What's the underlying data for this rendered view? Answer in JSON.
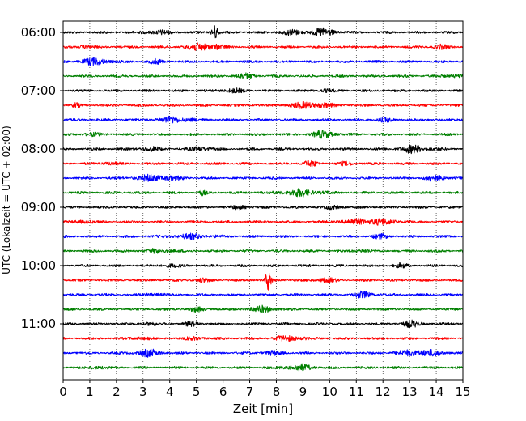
{
  "chart_data": {
    "type": "line",
    "title": "",
    "xlabel": "Zeit  [min]",
    "ylabel": "UTC (Lokalzeit = UTC + 02:00)",
    "xlim": [
      0,
      15
    ],
    "xticks": [
      "0",
      "1",
      "2",
      "3",
      "4",
      "5",
      "6",
      "7",
      "8",
      "9",
      "10",
      "11",
      "12",
      "13",
      "14",
      "15"
    ],
    "yticks": [
      {
        "label": "06:00",
        "row": 0
      },
      {
        "label": "07:00",
        "row": 4
      },
      {
        "label": "08:00",
        "row": 8
      },
      {
        "label": "09:00",
        "row": 12
      },
      {
        "label": "10:00",
        "row": 16
      },
      {
        "label": "11:00",
        "row": 20
      }
    ],
    "grid": "vertical dotted lines at each minute",
    "trace_colors": [
      "#000000",
      "#ff0000",
      "#0000ff",
      "#008000"
    ],
    "traces": [
      {
        "start": "06:00",
        "color": "#000000",
        "bursts": [
          [
            5.7,
            0.12,
            3.5
          ],
          [
            9.7,
            0.6,
            1.0
          ],
          [
            3.5,
            0.5,
            0.6
          ],
          [
            8.5,
            0.4,
            0.6
          ]
        ]
      },
      {
        "start": "06:15",
        "color": "#ff0000",
        "bursts": [
          [
            5.3,
            0.6,
            1.2
          ],
          [
            0.8,
            0.2,
            0.6
          ],
          [
            14.1,
            0.3,
            0.6
          ]
        ]
      },
      {
        "start": "06:30",
        "color": "#0000ff",
        "bursts": [
          [
            1.2,
            0.6,
            0.9
          ],
          [
            3.5,
            0.3,
            0.5
          ]
        ]
      },
      {
        "start": "06:45",
        "color": "#008000",
        "bursts": [
          [
            6.8,
            0.4,
            0.6
          ],
          [
            14.7,
            0.4,
            0.5
          ]
        ]
      },
      {
        "start": "07:00",
        "color": "#000000",
        "bursts": [
          [
            6.3,
            0.4,
            0.6
          ],
          [
            9.8,
            0.3,
            0.5
          ]
        ]
      },
      {
        "start": "07:15",
        "color": "#ff0000",
        "bursts": [
          [
            9.3,
            0.7,
            1.0
          ],
          [
            0.5,
            0.15,
            0.5
          ]
        ]
      },
      {
        "start": "07:30",
        "color": "#0000ff",
        "bursts": [
          [
            4.2,
            0.6,
            0.9
          ],
          [
            12.0,
            0.3,
            0.5
          ]
        ]
      },
      {
        "start": "07:45",
        "color": "#008000",
        "bursts": [
          [
            9.8,
            0.5,
            0.9
          ],
          [
            1.0,
            0.3,
            0.5
          ]
        ]
      },
      {
        "start": "08:00",
        "color": "#000000",
        "bursts": [
          [
            13.2,
            0.6,
            1.0
          ],
          [
            5.2,
            0.3,
            0.8
          ],
          [
            3.2,
            0.4,
            0.6
          ]
        ]
      },
      {
        "start": "08:15",
        "color": "#ff0000",
        "bursts": [
          [
            9.3,
            0.3,
            0.7
          ],
          [
            1.7,
            0.3,
            0.5
          ],
          [
            10.7,
            0.3,
            0.5
          ]
        ]
      },
      {
        "start": "08:30",
        "color": "#0000ff",
        "bursts": [
          [
            3.5,
            0.8,
            0.9
          ],
          [
            14.0,
            0.4,
            0.8
          ]
        ]
      },
      {
        "start": "08:45",
        "color": "#008000",
        "bursts": [
          [
            8.9,
            0.8,
            0.9
          ],
          [
            5.2,
            0.15,
            0.6
          ]
        ]
      },
      {
        "start": "09:00",
        "color": "#000000",
        "bursts": [
          [
            6.7,
            0.3,
            0.6
          ],
          [
            10.2,
            0.3,
            0.5
          ]
        ]
      },
      {
        "start": "09:15",
        "color": "#ff0000",
        "bursts": [
          [
            11.5,
            1.0,
            0.9
          ],
          [
            0.8,
            0.3,
            0.6
          ]
        ]
      },
      {
        "start": "09:30",
        "color": "#0000ff",
        "bursts": [
          [
            4.8,
            0.8,
            0.6
          ],
          [
            11.9,
            0.4,
            0.5
          ]
        ]
      },
      {
        "start": "09:45",
        "color": "#008000",
        "bursts": [
          [
            3.7,
            0.5,
            0.6
          ],
          [
            11.2,
            0.3,
            0.5
          ]
        ]
      },
      {
        "start": "10:00",
        "color": "#000000",
        "bursts": [
          [
            4.0,
            0.3,
            0.5
          ],
          [
            12.7,
            0.3,
            0.5
          ]
        ]
      },
      {
        "start": "10:15",
        "color": "#ff0000",
        "bursts": [
          [
            7.7,
            0.1,
            3.0
          ],
          [
            9.8,
            0.4,
            0.6
          ],
          [
            5.2,
            0.3,
            0.5
          ]
        ]
      },
      {
        "start": "10:30",
        "color": "#0000ff",
        "bursts": [
          [
            11.3,
            0.4,
            0.8
          ],
          [
            3.4,
            0.3,
            0.5
          ]
        ]
      },
      {
        "start": "10:45",
        "color": "#008000",
        "bursts": [
          [
            7.5,
            0.5,
            0.8
          ],
          [
            5.0,
            0.3,
            0.5
          ]
        ]
      },
      {
        "start": "11:00",
        "color": "#000000",
        "bursts": [
          [
            13.0,
            0.4,
            0.8
          ],
          [
            4.8,
            0.3,
            0.5
          ],
          [
            3.2,
            0.3,
            0.5
          ]
        ]
      },
      {
        "start": "11:15",
        "color": "#ff0000",
        "bursts": [
          [
            8.5,
            0.5,
            0.8
          ],
          [
            2.9,
            0.3,
            0.5
          ],
          [
            5.0,
            0.3,
            0.5
          ]
        ]
      },
      {
        "start": "11:30",
        "color": "#0000ff",
        "bursts": [
          [
            13.4,
            0.8,
            1.0
          ],
          [
            3.2,
            0.5,
            0.9
          ],
          [
            7.8,
            0.4,
            0.5
          ]
        ]
      },
      {
        "start": "11:45",
        "color": "#008000",
        "bursts": [
          [
            8.8,
            0.6,
            0.8
          ],
          [
            1.3,
            0.3,
            0.5
          ]
        ]
      }
    ]
  }
}
